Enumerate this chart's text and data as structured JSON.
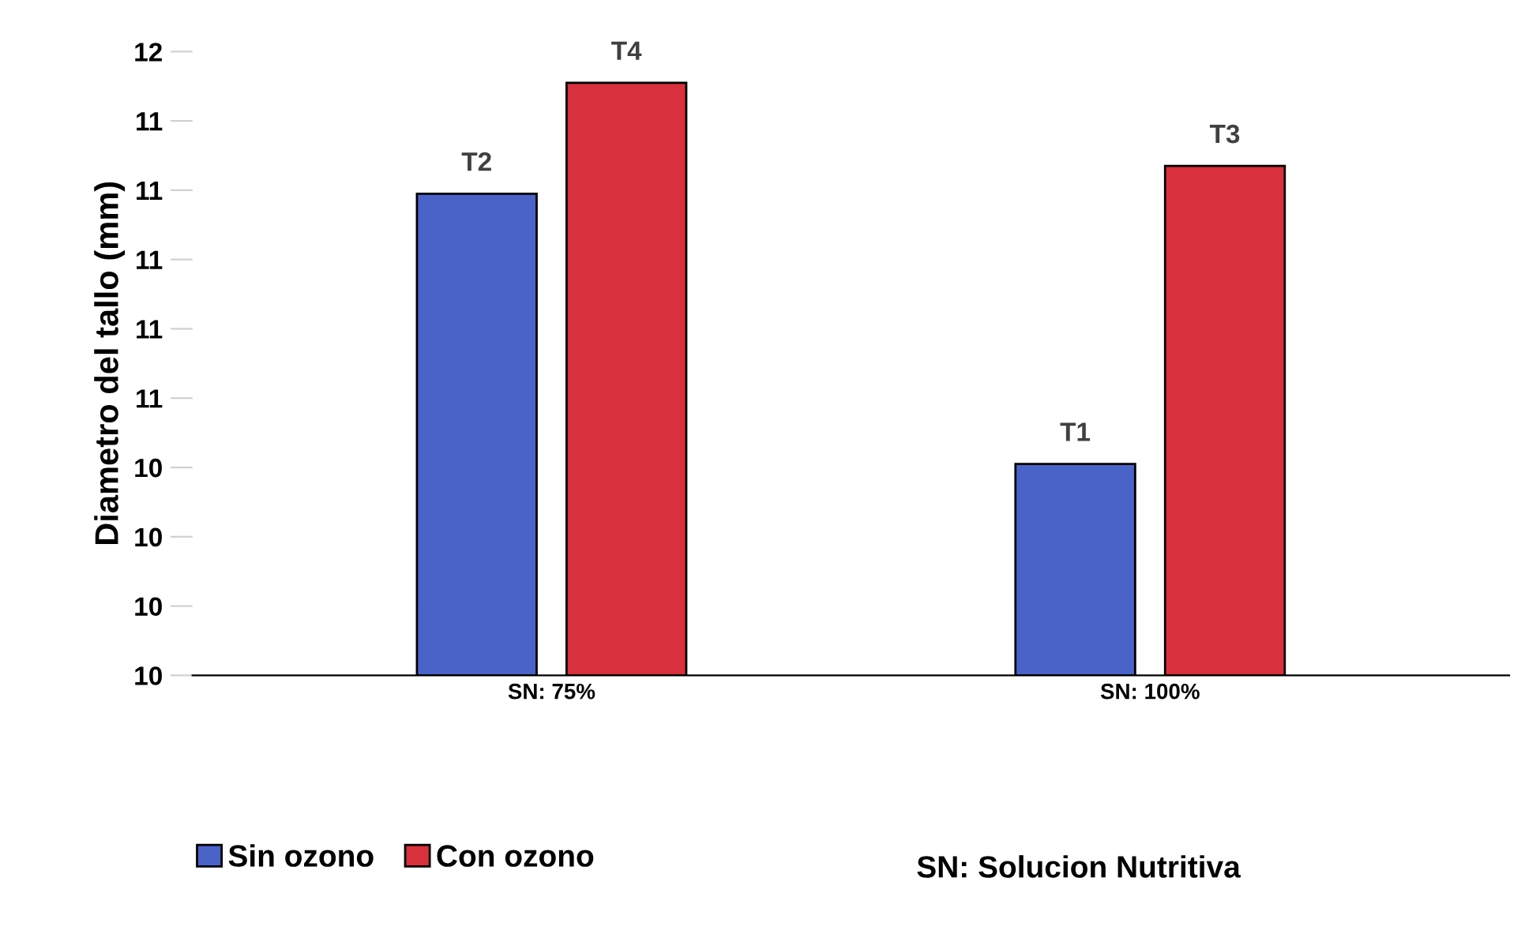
{
  "chart_data": {
    "type": "bar",
    "ylabel": "Diametro del tallo (mm)",
    "categories": [
      "SN: 75%",
      "SN: 100%"
    ],
    "series": [
      {
        "name": "Sin ozono",
        "color": "#4a63c8",
        "values": [
          11.19,
          10.41
        ],
        "value_labels": [
          "T2",
          "T1"
        ]
      },
      {
        "name": "Con ozono",
        "color": "#d8303c",
        "values": [
          11.51,
          11.27
        ],
        "value_labels": [
          "T4",
          "T3"
        ]
      }
    ],
    "ylim": [
      9.8,
      11.6
    ],
    "yticks": [
      {
        "value": 9.8,
        "label": "10"
      },
      {
        "value": 10.0,
        "label": "10"
      },
      {
        "value": 10.2,
        "label": "10"
      },
      {
        "value": 10.4,
        "label": "10"
      },
      {
        "value": 10.6,
        "label": "11"
      },
      {
        "value": 10.8,
        "label": "11"
      },
      {
        "value": 11.0,
        "label": "11"
      },
      {
        "value": 11.2,
        "label": "11"
      },
      {
        "value": 11.4,
        "label": "11"
      },
      {
        "value": 11.6,
        "label": "12"
      }
    ],
    "grid": false,
    "legend": "bottom",
    "annotations": [
      "SN: Solucion Nutritiva"
    ]
  }
}
